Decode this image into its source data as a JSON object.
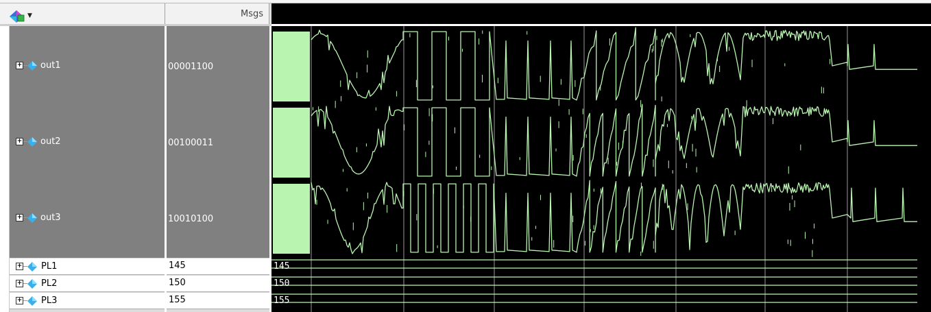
{
  "header": {
    "msgs_label": "Msgs",
    "tool_icon": "wave-signal-icon",
    "dropdown_icon": "dropdown-arrow-icon"
  },
  "signals": [
    {
      "name": "out1",
      "value": "00001100",
      "kind": "analog",
      "icon": "diamond-signal-icon"
    },
    {
      "name": "out2",
      "value": "00100011",
      "kind": "analog",
      "icon": "diamond-signal-icon"
    },
    {
      "name": "out3",
      "value": "10010100",
      "kind": "analog",
      "icon": "diamond-signal-icon"
    },
    {
      "name": "PL1",
      "value": "145",
      "kind": "bus",
      "wave_label": "145",
      "icon": "diamond-signal-icon"
    },
    {
      "name": "PL2",
      "value": "150",
      "kind": "bus",
      "wave_label": "150",
      "icon": "diamond-signal-icon"
    },
    {
      "name": "PL3",
      "value": "155",
      "kind": "bus",
      "wave_label": "155",
      "icon": "diamond-signal-icon"
    }
  ],
  "colors": {
    "wave": "#b9f5b0",
    "cursor": "#9a9a9a",
    "background": "#000000",
    "panel_grey": "#808080"
  }
}
